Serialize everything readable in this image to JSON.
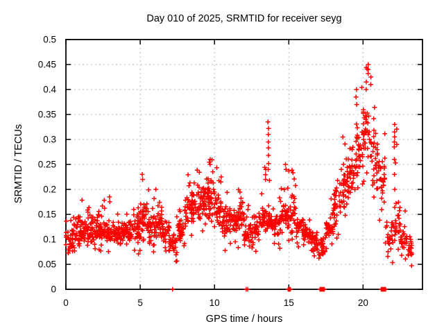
{
  "title": "Day 010 of 2025, SRMTID for receiver seyg",
  "chart_data": {
    "type": "scatter",
    "title": "Day 010 of 2025, SRMTID for receiver seyg",
    "xlabel": "GPS time / hours",
    "ylabel": "SRMTID / TECUs",
    "xlim": [
      0,
      24
    ],
    "ylim": [
      0,
      0.5
    ],
    "xticks": {
      "values": [
        0,
        5,
        10,
        15,
        20
      ],
      "labels": [
        "0",
        "5",
        "10",
        "15",
        "20"
      ]
    },
    "yticks": {
      "values": [
        0,
        0.05,
        0.1,
        0.15,
        0.2,
        0.25,
        0.3,
        0.35,
        0.4,
        0.45,
        0.5
      ],
      "labels": [
        "0",
        "0.05",
        "0.1",
        "0.15",
        "0.2",
        "0.25",
        "0.3",
        "0.35",
        "0.4",
        "0.45",
        "0.5"
      ]
    },
    "grid": true,
    "grid_color": "#b8b8b8",
    "legend": "none",
    "marker": "plus",
    "marker_color": "#ff0000",
    "series_name": "SRMTID",
    "density_bins_format": [
      "hour_start",
      "hour_end",
      "dense_low",
      "dense_high",
      "min",
      "max",
      "count"
    ],
    "density_bins": [
      [
        0.0,
        0.5,
        0.07,
        0.13,
        0.045,
        0.165,
        34
      ],
      [
        0.5,
        1.0,
        0.08,
        0.15,
        0.06,
        0.19,
        36
      ],
      [
        1.0,
        1.5,
        0.09,
        0.14,
        0.07,
        0.18,
        36
      ],
      [
        1.5,
        2.0,
        0.08,
        0.15,
        0.06,
        0.19,
        36
      ],
      [
        2.0,
        2.5,
        0.09,
        0.15,
        0.07,
        0.185,
        36
      ],
      [
        2.5,
        3.0,
        0.09,
        0.14,
        0.07,
        0.19,
        36
      ],
      [
        3.0,
        3.5,
        0.09,
        0.13,
        0.075,
        0.16,
        36
      ],
      [
        3.5,
        4.0,
        0.085,
        0.14,
        0.07,
        0.17,
        36
      ],
      [
        4.0,
        4.5,
        0.09,
        0.14,
        0.08,
        0.18,
        36
      ],
      [
        4.5,
        5.0,
        0.09,
        0.15,
        0.07,
        0.17,
        36
      ],
      [
        5.0,
        5.5,
        0.1,
        0.18,
        0.08,
        0.23,
        36
      ],
      [
        5.5,
        6.0,
        0.09,
        0.16,
        0.07,
        0.2,
        34
      ],
      [
        6.0,
        6.5,
        0.1,
        0.17,
        0.08,
        0.22,
        36
      ],
      [
        6.5,
        7.0,
        0.09,
        0.14,
        0.07,
        0.16,
        34
      ],
      [
        7.0,
        7.5,
        0.07,
        0.12,
        0.05,
        0.15,
        32
      ],
      [
        7.5,
        8.0,
        0.09,
        0.14,
        0.07,
        0.17,
        34
      ],
      [
        8.0,
        8.5,
        0.12,
        0.18,
        0.09,
        0.23,
        36
      ],
      [
        8.5,
        9.0,
        0.13,
        0.2,
        0.1,
        0.25,
        36
      ],
      [
        9.0,
        9.5,
        0.14,
        0.21,
        0.11,
        0.26,
        36
      ],
      [
        9.5,
        10.0,
        0.13,
        0.22,
        0.1,
        0.27,
        38
      ],
      [
        10.0,
        10.5,
        0.12,
        0.19,
        0.1,
        0.25,
        36
      ],
      [
        10.5,
        11.0,
        0.1,
        0.17,
        0.06,
        0.21,
        34
      ],
      [
        11.0,
        11.5,
        0.11,
        0.16,
        0.09,
        0.21,
        34
      ],
      [
        11.5,
        12.0,
        0.11,
        0.17,
        0.08,
        0.2,
        34
      ],
      [
        12.0,
        12.5,
        0.08,
        0.14,
        0.04,
        0.18,
        32
      ],
      [
        12.5,
        13.0,
        0.09,
        0.15,
        0.06,
        0.17,
        32
      ],
      [
        13.0,
        13.5,
        0.11,
        0.17,
        0.09,
        0.25,
        34
      ],
      [
        13.5,
        14.0,
        0.1,
        0.17,
        0.05,
        0.335,
        36
      ],
      [
        14.0,
        14.5,
        0.1,
        0.16,
        0.07,
        0.19,
        34
      ],
      [
        14.5,
        15.0,
        0.11,
        0.18,
        0.09,
        0.25,
        34
      ],
      [
        15.0,
        15.5,
        0.11,
        0.19,
        0.09,
        0.24,
        34
      ],
      [
        15.5,
        16.0,
        0.1,
        0.15,
        0.08,
        0.19,
        32
      ],
      [
        16.0,
        16.5,
        0.09,
        0.13,
        0.07,
        0.16,
        34
      ],
      [
        16.5,
        17.0,
        0.07,
        0.12,
        0.05,
        0.14,
        32
      ],
      [
        17.0,
        17.5,
        0.06,
        0.11,
        0.04,
        0.13,
        32
      ],
      [
        17.5,
        18.0,
        0.09,
        0.16,
        0.06,
        0.2,
        32
      ],
      [
        18.0,
        18.5,
        0.13,
        0.21,
        0.1,
        0.26,
        34
      ],
      [
        18.5,
        19.0,
        0.16,
        0.25,
        0.13,
        0.31,
        34
      ],
      [
        19.0,
        19.5,
        0.18,
        0.28,
        0.15,
        0.37,
        34
      ],
      [
        19.5,
        20.0,
        0.22,
        0.34,
        0.19,
        0.42,
        36
      ],
      [
        20.0,
        20.5,
        0.24,
        0.38,
        0.2,
        0.452,
        36
      ],
      [
        20.5,
        21.0,
        0.2,
        0.32,
        0.15,
        0.38,
        34
      ],
      [
        21.0,
        21.5,
        0.16,
        0.28,
        0.12,
        0.33,
        30
      ],
      [
        21.5,
        22.0,
        0.07,
        0.14,
        0.05,
        0.19,
        24
      ],
      [
        22.0,
        22.5,
        0.09,
        0.17,
        0.05,
        0.33,
        28
      ],
      [
        22.5,
        23.0,
        0.07,
        0.13,
        0.05,
        0.2,
        28
      ],
      [
        23.0,
        23.3,
        0.06,
        0.11,
        0.045,
        0.13,
        18
      ]
    ],
    "outlier_columns": [
      {
        "x": 5.15,
        "ys": [
          0.23,
          0.22
        ]
      },
      {
        "x": 9.7,
        "ys": [
          0.26,
          0.25
        ]
      },
      {
        "x": 10.45,
        "ys": [
          0.225,
          0.215
        ]
      },
      {
        "x": 13.45,
        "ys": [
          0.24,
          0.22
        ]
      },
      {
        "x": 13.62,
        "ys": [
          0.335,
          0.322,
          0.31,
          0.295,
          0.283,
          0.268,
          0.252,
          0.24
        ]
      },
      {
        "x": 14.8,
        "ys": [
          0.25,
          0.24
        ]
      },
      {
        "x": 19.55,
        "ys": [
          0.4,
          0.385,
          0.37
        ]
      },
      {
        "x": 20.22,
        "ys": [
          0.415,
          0.4
        ]
      },
      {
        "x": 20.35,
        "ys": [
          0.45,
          0.44,
          0.432
        ]
      },
      {
        "x": 20.5,
        "ys": [
          0.425,
          0.41
        ]
      },
      {
        "x": 22.12,
        "ys": [
          0.33,
          0.315,
          0.305,
          0.295,
          0.285,
          0.26,
          0.23,
          0.2
        ]
      }
    ],
    "zero_marks_hours": [
      7.18,
      12.13,
      12.24,
      14.96,
      15.01,
      15.06,
      15.11,
      17.1,
      17.15,
      17.2,
      17.25,
      17.3,
      17.35,
      17.4,
      21.22,
      21.28,
      21.34,
      21.4,
      21.46,
      21.52
    ]
  }
}
